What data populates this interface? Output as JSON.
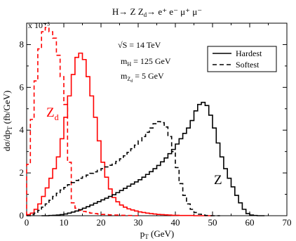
{
  "chart_data": {
    "type": "line",
    "title_parts": {
      "main": "H→ Z Z",
      "sub": "d",
      "tail": "→ e⁺ e⁻ μ⁺ μ⁻"
    },
    "xlabel": {
      "main": "p",
      "sub": "T",
      "tail": " (GeV)"
    },
    "ylabel": {
      "main": "dσ/dp",
      "sub": "T",
      "tail": " (fb/GeV)"
    },
    "y_multiplier": "x 10⁻³",
    "xlim": [
      0,
      70
    ],
    "ylim": [
      0,
      9
    ],
    "x_ticks": [
      0,
      10,
      20,
      30,
      40,
      50,
      60,
      70
    ],
    "y_ticks": [
      0,
      2,
      4,
      6,
      8
    ],
    "grid": false,
    "legend_position": "top-right",
    "legend": [
      {
        "label": "Hardest",
        "dash": "solid"
      },
      {
        "label": "Softest",
        "dash": "dashed"
      }
    ],
    "annotations": {
      "sqrt_s": "√S = 14 TeV",
      "mh": {
        "main": "m",
        "sub": "H",
        "tail": " = 125 GeV"
      },
      "mzd": {
        "main": "m",
        "sub": "Z",
        "subsub": "d",
        "tail": " = 5 GeV"
      },
      "zd_label": {
        "main": "Z",
        "sub": "d"
      },
      "z_label": "Z"
    },
    "colors": {
      "zd": "#ff0000",
      "z": "#000000"
    },
    "series": [
      {
        "name": "Hardest",
        "group": "Z_d",
        "color": "#ff0000",
        "dash": "solid",
        "x": [
          1,
          2,
          3,
          4,
          5,
          6,
          7,
          8,
          9,
          10,
          11,
          12,
          13,
          14,
          15,
          16,
          17,
          18,
          19,
          20,
          21,
          22,
          23,
          24,
          25,
          26,
          27,
          28,
          29,
          30,
          31,
          32,
          33,
          34,
          35,
          36,
          37,
          38,
          39,
          40,
          41,
          42,
          43,
          44,
          45,
          46,
          47,
          48,
          49,
          50
        ],
        "values": [
          0.05,
          0.12,
          0.3,
          0.55,
          0.9,
          1.3,
          1.75,
          2.2,
          2.75,
          3.6,
          4.6,
          5.6,
          6.6,
          7.4,
          7.6,
          7.3,
          6.5,
          5.6,
          4.6,
          3.5,
          2.5,
          1.8,
          1.25,
          0.85,
          0.65,
          0.5,
          0.4,
          0.32,
          0.27,
          0.22,
          0.18,
          0.15,
          0.12,
          0.1,
          0.08,
          0.06,
          0.05,
          0.04,
          0.03,
          0.02,
          0.02,
          0.01,
          0.01,
          0.01,
          0.01,
          0.0,
          0.0,
          0.0,
          0.0,
          0.0
        ]
      },
      {
        "name": "Softest",
        "group": "Z_d",
        "color": "#ff0000",
        "dash": "dashed",
        "x": [
          1,
          2,
          3,
          4,
          5,
          6,
          7,
          8,
          9,
          10,
          11,
          12,
          13,
          14,
          15,
          16,
          17,
          18,
          19,
          20,
          21,
          22,
          23,
          24,
          25,
          26,
          27,
          28,
          29,
          30
        ],
        "values": [
          2.4,
          4.5,
          6.3,
          7.8,
          8.6,
          8.8,
          8.6,
          8.3,
          7.5,
          6.5,
          5.2,
          2.5,
          0.6,
          0.35,
          0.25,
          0.2,
          0.15,
          0.12,
          0.1,
          0.08,
          0.06,
          0.05,
          0.04,
          0.03,
          0.03,
          0.02,
          0.02,
          0.01,
          0.01,
          0.0
        ]
      },
      {
        "name": "Hardest",
        "group": "Z",
        "color": "#000000",
        "dash": "solid",
        "x": [
          5,
          6,
          7,
          8,
          9,
          10,
          11,
          12,
          13,
          14,
          15,
          16,
          17,
          18,
          19,
          20,
          21,
          22,
          23,
          24,
          25,
          26,
          27,
          28,
          29,
          30,
          31,
          32,
          33,
          34,
          35,
          36,
          37,
          38,
          39,
          40,
          41,
          42,
          43,
          44,
          45,
          46,
          47,
          48,
          49,
          50,
          51,
          52,
          53,
          54,
          55,
          56,
          57,
          58,
          59,
          60,
          61,
          62,
          63,
          64
        ],
        "values": [
          0.0,
          0.0,
          0.01,
          0.02,
          0.03,
          0.05,
          0.08,
          0.12,
          0.17,
          0.22,
          0.28,
          0.35,
          0.42,
          0.5,
          0.58,
          0.66,
          0.74,
          0.82,
          0.9,
          0.98,
          1.08,
          1.18,
          1.28,
          1.38,
          1.48,
          1.58,
          1.68,
          1.8,
          1.93,
          2.06,
          2.2,
          2.35,
          2.52,
          2.7,
          2.9,
          3.1,
          3.35,
          3.6,
          3.85,
          4.1,
          4.45,
          4.9,
          5.2,
          5.3,
          5.15,
          4.7,
          4.1,
          3.4,
          2.75,
          2.2,
          1.75,
          1.35,
          0.95,
          0.6,
          0.3,
          0.1,
          0.03,
          0.01,
          0.0,
          0.0
        ]
      },
      {
        "name": "Softest",
        "group": "Z",
        "color": "#000000",
        "dash": "dashed",
        "x": [
          1,
          2,
          3,
          4,
          5,
          6,
          7,
          8,
          9,
          10,
          11,
          12,
          13,
          14,
          15,
          16,
          17,
          18,
          19,
          20,
          21,
          22,
          23,
          24,
          25,
          26,
          27,
          28,
          29,
          30,
          31,
          32,
          33,
          34,
          35,
          36,
          37,
          38,
          39,
          40,
          41,
          42,
          43,
          44,
          45,
          46,
          47,
          48,
          49,
          50,
          51,
          52
        ],
        "values": [
          0.0,
          0.05,
          0.12,
          0.25,
          0.4,
          0.55,
          0.72,
          0.9,
          1.05,
          1.2,
          1.32,
          1.45,
          1.55,
          1.65,
          1.75,
          1.82,
          1.9,
          1.98,
          2.05,
          2.12,
          2.2,
          2.28,
          2.36,
          2.44,
          2.54,
          2.66,
          2.8,
          2.96,
          3.13,
          3.3,
          3.5,
          3.7,
          3.9,
          4.1,
          4.3,
          4.4,
          4.35,
          4.15,
          3.7,
          3.0,
          2.25,
          1.5,
          0.95,
          0.55,
          0.3,
          0.15,
          0.07,
          0.03,
          0.01,
          0.0,
          0.0,
          0.0
        ]
      }
    ]
  }
}
